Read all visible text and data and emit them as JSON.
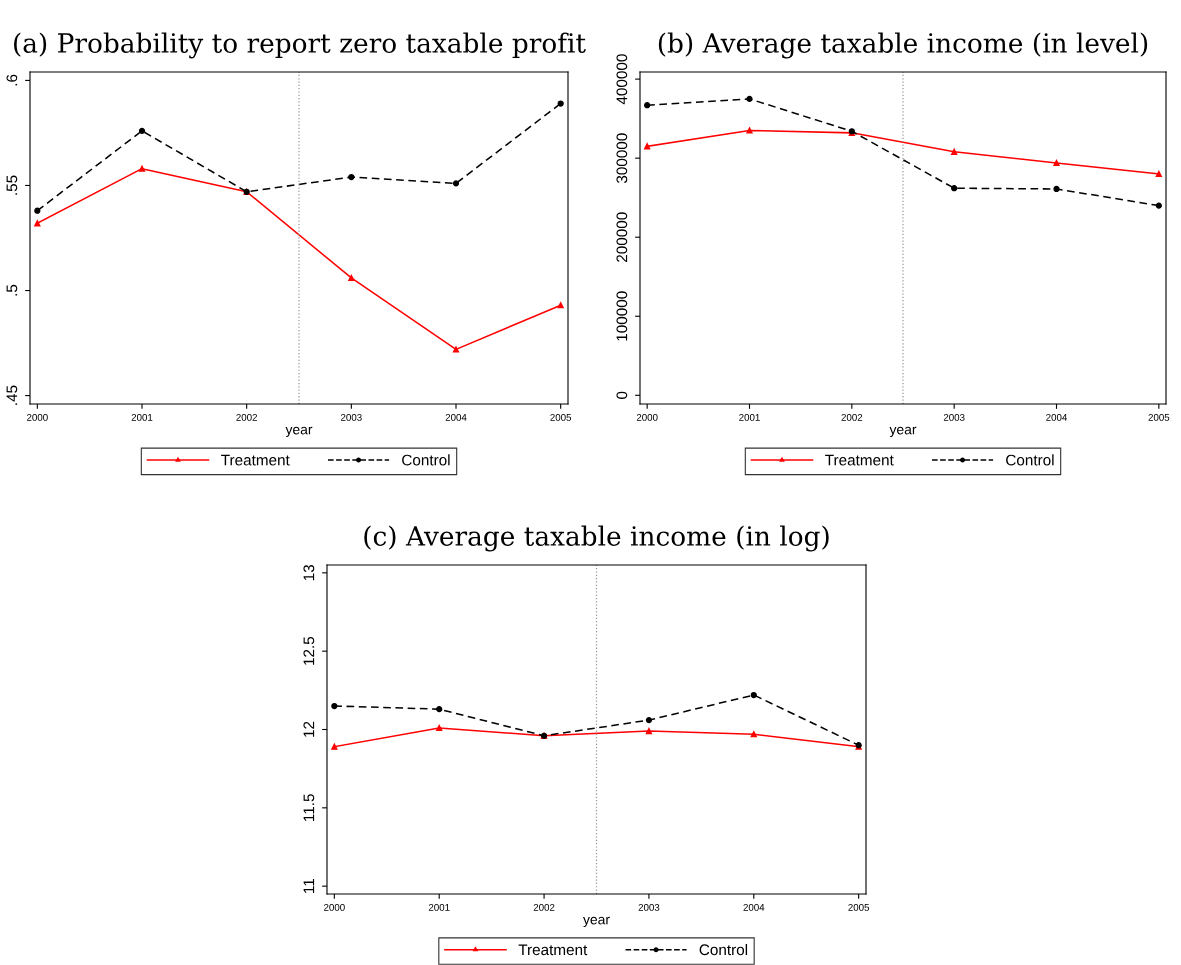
{
  "chart_data": [
    {
      "type": "line",
      "title": "(a) Probability to report zero taxable profit",
      "xlabel": "year",
      "x": [
        2000,
        2001,
        2002,
        2003,
        2004,
        2005
      ],
      "xlim": [
        1999.93,
        2005.07
      ],
      "xticks": [
        2000,
        2001,
        2002,
        2003,
        2004,
        2005
      ],
      "ylim": [
        0.446,
        0.604
      ],
      "yticks": [
        {
          "value": 0.45,
          "label": ".45"
        },
        {
          "value": 0.5,
          "label": ".5"
        },
        {
          "value": 0.55,
          "label": ".55"
        },
        {
          "value": 0.6,
          "label": ".6"
        }
      ],
      "grid": false,
      "legend": "bottom",
      "ref_lines": [
        {
          "axis": "x",
          "value": 2002.5,
          "color": "#999999",
          "line_style": "dotted"
        }
      ],
      "series": [
        {
          "name": "Treatment",
          "color": "#ff0000",
          "marker": "triangle",
          "line_style": "solid",
          "values": [
            0.532,
            0.558,
            0.547,
            0.506,
            0.472,
            0.493
          ]
        },
        {
          "name": "Control",
          "color": "#000000",
          "marker": "circle",
          "line_style": "dashed",
          "values": [
            0.538,
            0.576,
            0.547,
            0.554,
            0.551,
            0.589
          ]
        }
      ]
    },
    {
      "type": "line",
      "title": "(b) Average taxable income (in level)",
      "xlabel": "year",
      "x": [
        2000,
        2001,
        2002,
        2003,
        2004,
        2005
      ],
      "xlim": [
        1999.93,
        2005.07
      ],
      "xticks": [
        2000,
        2001,
        2002,
        2003,
        2004,
        2005
      ],
      "ylim": [
        -11000,
        409000
      ],
      "yticks": [
        0,
        100000,
        200000,
        300000,
        400000
      ],
      "grid": false,
      "legend": "bottom",
      "ref_lines": [
        {
          "axis": "x",
          "value": 2002.5,
          "color": "#999999",
          "line_style": "dotted"
        }
      ],
      "series": [
        {
          "name": "Treatment",
          "color": "#ff0000",
          "marker": "triangle",
          "line_style": "solid",
          "values": [
            315000,
            335000,
            332000,
            308000,
            294000,
            280000
          ]
        },
        {
          "name": "Control",
          "color": "#000000",
          "marker": "circle",
          "line_style": "dashed",
          "values": [
            367000,
            375000,
            334000,
            262000,
            261000,
            240000
          ]
        }
      ]
    },
    {
      "type": "line",
      "title": "(c) Average taxable income (in log)",
      "xlabel": "year",
      "x": [
        2000,
        2001,
        2002,
        2003,
        2004,
        2005
      ],
      "xlim": [
        1999.93,
        2005.07
      ],
      "xticks": [
        2000,
        2001,
        2002,
        2003,
        2004,
        2005
      ],
      "ylim": [
        10.95,
        13.05
      ],
      "yticks": [
        11,
        11.5,
        12,
        12.5,
        13
      ],
      "grid": false,
      "legend": "bottom",
      "ref_lines": [
        {
          "axis": "x",
          "value": 2002.5,
          "color": "#999999",
          "line_style": "dotted"
        }
      ],
      "series": [
        {
          "name": "Treatment",
          "color": "#ff0000",
          "marker": "triangle",
          "line_style": "solid",
          "values": [
            11.89,
            12.01,
            11.96,
            11.99,
            11.97,
            11.89
          ]
        },
        {
          "name": "Control",
          "color": "#000000",
          "marker": "circle",
          "line_style": "dashed",
          "values": [
            12.15,
            12.13,
            11.96,
            12.06,
            12.22,
            11.9
          ]
        }
      ]
    }
  ]
}
